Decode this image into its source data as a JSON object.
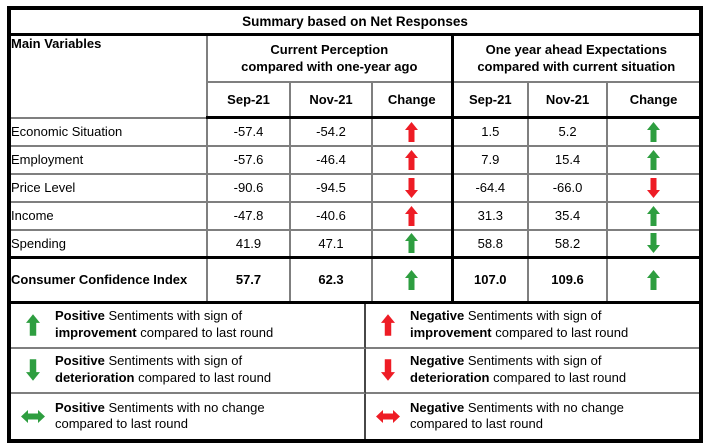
{
  "title": "Summary based on Net Responses",
  "columns": {
    "main": "Main Variables",
    "group1": "Current Perception\ncompared with one-year ago",
    "group2": "One year ahead Expectations\ncompared with current situation",
    "subheaders": [
      "Sep-21",
      "Nov-21",
      "Change"
    ]
  },
  "chart_data": {
    "type": "table",
    "title": "Summary based on Net Responses",
    "categories": [
      "Economic Situation",
      "Employment",
      "Price Level",
      "Income",
      "Spending",
      "Consumer Confidence Index"
    ],
    "series": [
      {
        "name": "Current Perception Sep-21",
        "values": [
          -57.4,
          -57.6,
          -90.6,
          -47.8,
          41.9,
          57.7
        ]
      },
      {
        "name": "Current Perception Nov-21",
        "values": [
          -54.2,
          -46.4,
          -94.5,
          -40.6,
          47.1,
          62.3
        ]
      },
      {
        "name": "One year ahead Expectations Sep-21",
        "values": [
          1.5,
          7.9,
          -64.4,
          31.3,
          58.8,
          107.0
        ]
      },
      {
        "name": "One year ahead Expectations Nov-21",
        "values": [
          5.2,
          15.4,
          -66.0,
          35.4,
          58.2,
          109.6
        ]
      }
    ]
  },
  "rows": [
    {
      "label": "Economic Situation",
      "cp_sep": "-57.4",
      "cp_nov": "-54.2",
      "cp_chg": "up-red",
      "ex_sep": "1.5",
      "ex_nov": "5.2",
      "ex_chg": "up-green",
      "bold": false
    },
    {
      "label": "Employment",
      "cp_sep": "-57.6",
      "cp_nov": "-46.4",
      "cp_chg": "up-red",
      "ex_sep": "7.9",
      "ex_nov": "15.4",
      "ex_chg": "up-green",
      "bold": false
    },
    {
      "label": "Price Level",
      "cp_sep": "-90.6",
      "cp_nov": "-94.5",
      "cp_chg": "down-red",
      "ex_sep": "-64.4",
      "ex_nov": "-66.0",
      "ex_chg": "down-red",
      "bold": false
    },
    {
      "label": "Income",
      "cp_sep": "-47.8",
      "cp_nov": "-40.6",
      "cp_chg": "up-red",
      "ex_sep": "31.3",
      "ex_nov": "35.4",
      "ex_chg": "up-green",
      "bold": false
    },
    {
      "label": "Spending",
      "cp_sep": "41.9",
      "cp_nov": "47.1",
      "cp_chg": "up-green",
      "ex_sep": "58.8",
      "ex_nov": "58.2",
      "ex_chg": "down-green",
      "bold": false
    },
    {
      "label": "Consumer Confidence Index",
      "cp_sep": "57.7",
      "cp_nov": "62.3",
      "cp_chg": "up-green",
      "ex_sep": "107.0",
      "ex_nov": "109.6",
      "ex_chg": "up-green",
      "bold": true
    }
  ],
  "legend": [
    {
      "arrow": "up-green",
      "parts": [
        {
          "b": "Positive"
        },
        {
          "t": " Sentiments with sign of"
        },
        {
          "br": true
        },
        {
          "b": "improvement"
        },
        {
          "t": " compared to last round"
        }
      ]
    },
    {
      "arrow": "up-red",
      "parts": [
        {
          "b": "Negative"
        },
        {
          "t": " Sentiments with sign of"
        },
        {
          "br": true
        },
        {
          "b": "improvement"
        },
        {
          "t": " compared to last round"
        }
      ]
    },
    {
      "arrow": "down-green",
      "parts": [
        {
          "b": "Positive"
        },
        {
          "t": " Sentiments with sign of"
        },
        {
          "br": true
        },
        {
          "b": "deterioration"
        },
        {
          "t": " compared to last round"
        }
      ]
    },
    {
      "arrow": "down-red",
      "parts": [
        {
          "b": "Negative"
        },
        {
          "t": " Sentiments with sign of"
        },
        {
          "br": true
        },
        {
          "b": "deterioration"
        },
        {
          "t": " compared to last round"
        }
      ]
    },
    {
      "arrow": "lr-green",
      "parts": [
        {
          "b": "Positive"
        },
        {
          "t": " Sentiments with no change"
        },
        {
          "br": true
        },
        {
          "t": "compared to last round"
        }
      ]
    },
    {
      "arrow": "lr-red",
      "parts": [
        {
          "b": "Negative"
        },
        {
          "t": " Sentiments with no change"
        },
        {
          "br": true
        },
        {
          "t": "compared to last round"
        }
      ]
    }
  ],
  "colors": {
    "green": "#2e9e40",
    "red": "#ee1c25"
  }
}
